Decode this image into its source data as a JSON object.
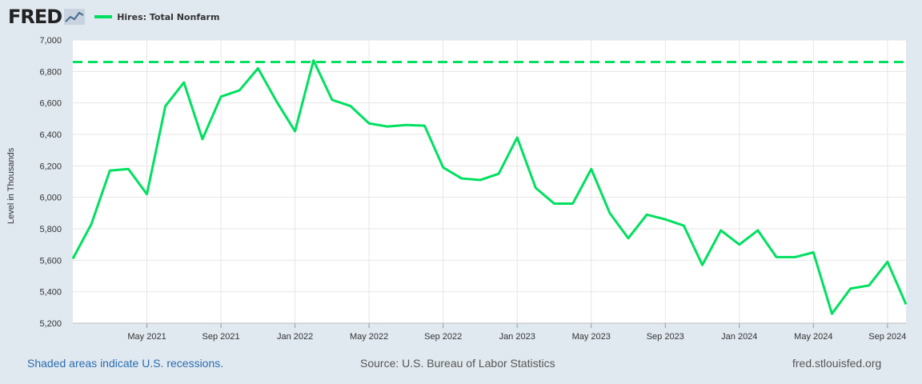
{
  "brand": {
    "logo": "FRED",
    "mark_icon": "trend-line-icon"
  },
  "legend": {
    "label": "Hires: Total Nonfarm",
    "color": "#00e060"
  },
  "footer": {
    "recession_note": "Shaded areas indicate U.S. recessions.",
    "source": "Source: U.S. Bureau of Labor Statistics",
    "site": "fred.stlouisfed.org"
  },
  "chart_data": {
    "type": "line",
    "ylabel": "Level in Thousands",
    "ylim": [
      5200,
      7000
    ],
    "y_ticks": [
      5200,
      5400,
      5600,
      5800,
      6000,
      6200,
      6400,
      6600,
      6800,
      7000
    ],
    "y_tick_labels": [
      "5,200",
      "5,400",
      "5,600",
      "5,800",
      "6,000",
      "6,200",
      "6,400",
      "6,600",
      "6,800",
      "7,000"
    ],
    "x_ticks": [
      "2021-05",
      "2021-09",
      "2022-01",
      "2022-05",
      "2022-09",
      "2023-01",
      "2023-05",
      "2023-09",
      "2024-01",
      "2024-05",
      "2024-09"
    ],
    "x_tick_labels": [
      "May 2021",
      "Sep 2021",
      "Jan 2022",
      "May 2022",
      "Sep 2022",
      "Jan 2023",
      "May 2023",
      "Sep 2023",
      "Jan 2024",
      "May 2024",
      "Sep 2024"
    ],
    "xlim": [
      "2021-01",
      "2024-10"
    ],
    "grid": true,
    "reference_line": {
      "value": 6860,
      "style": "dashed"
    },
    "series": [
      {
        "name": "Hires: Total Nonfarm",
        "color": "#00e060",
        "x": [
          "2021-01",
          "2021-02",
          "2021-03",
          "2021-04",
          "2021-05",
          "2021-06",
          "2021-07",
          "2021-08",
          "2021-09",
          "2021-10",
          "2021-11",
          "2021-12",
          "2022-01",
          "2022-02",
          "2022-03",
          "2022-04",
          "2022-05",
          "2022-06",
          "2022-07",
          "2022-08",
          "2022-09",
          "2022-10",
          "2022-11",
          "2022-12",
          "2023-01",
          "2023-02",
          "2023-03",
          "2023-04",
          "2023-05",
          "2023-06",
          "2023-07",
          "2023-08",
          "2023-09",
          "2023-10",
          "2023-11",
          "2023-12",
          "2024-01",
          "2024-02",
          "2024-03",
          "2024-04",
          "2024-05",
          "2024-06",
          "2024-07",
          "2024-08",
          "2024-09",
          "2024-10"
        ],
        "values": [
          5610,
          5830,
          6170,
          6180,
          6020,
          6580,
          6730,
          6370,
          6640,
          6680,
          6820,
          6610,
          6420,
          6870,
          6620,
          6580,
          6470,
          6450,
          6460,
          6455,
          6190,
          6120,
          6110,
          6150,
          6380,
          6060,
          5960,
          5960,
          6180,
          5900,
          5740,
          5890,
          5860,
          5820,
          5570,
          5790,
          5700,
          5790,
          5620,
          5620,
          5650,
          5260,
          5420,
          5440,
          5590,
          5320
        ]
      }
    ]
  }
}
